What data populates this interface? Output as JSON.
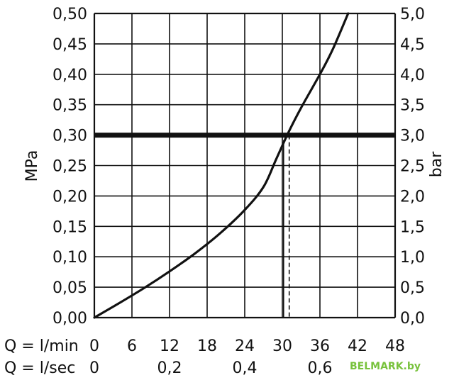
{
  "chart_data": {
    "type": "line",
    "title": "",
    "ylabel_left": "MPa",
    "ylabel_right": "bar",
    "x_axes": [
      {
        "label": "Q = l/min",
        "ticks": [
          "0",
          "6",
          "12",
          "18",
          "24",
          "30",
          "36",
          "42",
          "48"
        ],
        "range": [
          0,
          48
        ]
      },
      {
        "label": "Q = l/sec",
        "ticks": [
          "0",
          "0,2",
          "0,4",
          "0,6"
        ],
        "range": [
          0,
          0.8
        ]
      }
    ],
    "y_left_ticks": [
      "0,00",
      "0,05",
      "0,10",
      "0,15",
      "0,20",
      "0,25",
      "0,30",
      "0,35",
      "0,40",
      "0,45",
      "0,50"
    ],
    "y_right_ticks": [
      "0,0",
      "0,5",
      "1,0",
      "1,5",
      "2,0",
      "2,5",
      "3,0",
      "3,5",
      "4,0",
      "4,5",
      "5,0"
    ],
    "ylim": [
      0,
      0.5
    ],
    "grid": true,
    "series": [
      {
        "x": [
          0,
          4,
          8,
          12,
          16,
          20,
          24,
          27,
          29,
          31,
          33,
          36,
          38,
          40.5
        ],
        "y": [
          0.0,
          0.024,
          0.049,
          0.076,
          0.105,
          0.138,
          0.177,
          0.215,
          0.26,
          0.305,
          0.345,
          0.4,
          0.44,
          0.5
        ]
      }
    ],
    "reference_line_y": 0.3,
    "marker_lines_x": [
      30.2,
      31.1
    ]
  },
  "watermark": "BELMARK.by",
  "colors": {
    "line": "#111111",
    "grid": "#111111",
    "watermark": "#78c23c"
  }
}
